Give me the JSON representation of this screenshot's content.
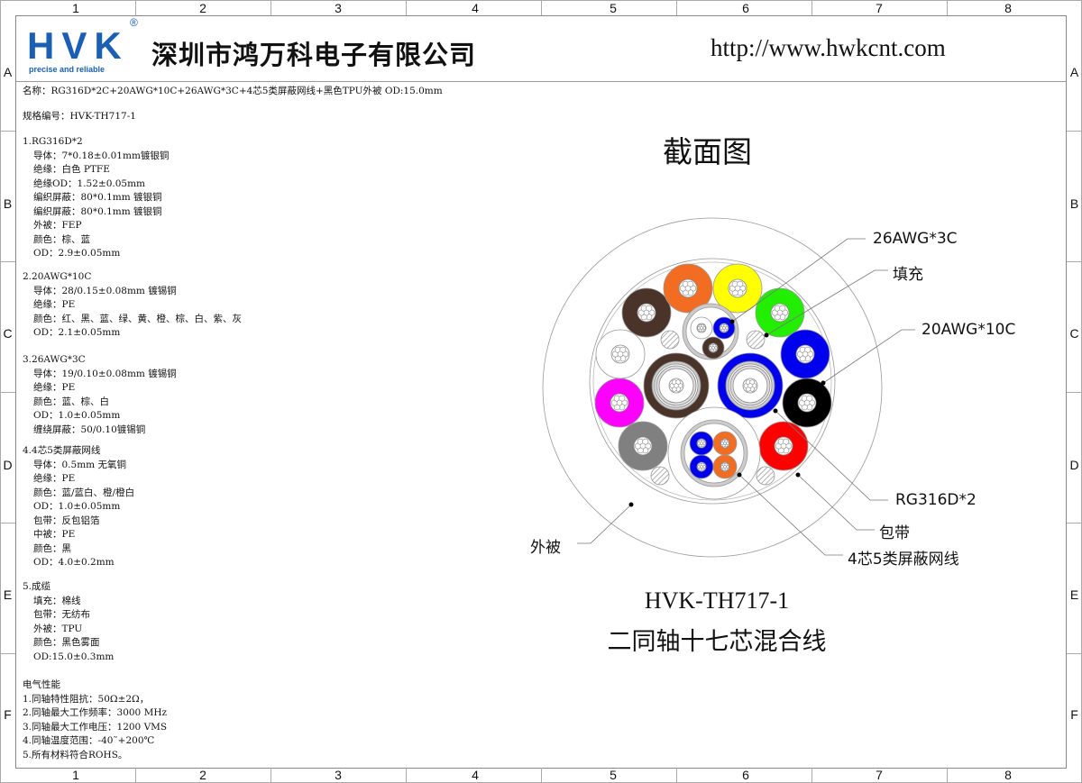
{
  "frame": {
    "columns": [
      "1",
      "2",
      "3",
      "4",
      "5",
      "6",
      "7",
      "8"
    ],
    "rows": [
      "A",
      "B",
      "C",
      "D",
      "E",
      "F"
    ]
  },
  "header": {
    "logo_text": "HVK",
    "logo_tagline": "precise and reliable",
    "logo_mark": "®",
    "company": "深圳市鸿万科电子有限公司",
    "url": "http://www.hwkcnt.com",
    "brand_color": "#1a5fb4"
  },
  "spec": {
    "name_line": "名称：RG316D*2C+20AWG*10C+26AWG*3C+4芯5类屏蔽网线+黑色TPU外被 OD:15.0mm",
    "code_line": "规格编号：HVK-TH717-1",
    "sections": [
      {
        "title": "1.RG316D*2",
        "lines": [
          "导体：7*0.18±0.01mm镀银铜",
          "绝缘：白色 PTFE",
          "绝缘OD：1.52±0.05mm",
          "编织屏蔽：80*0.1mm 镀银铜",
          "编织屏蔽：80*0.1mm 镀银铜",
          "外被：FEP",
          "颜色：棕、蓝",
          "OD：2.9±0.05mm"
        ]
      },
      {
        "title": "2.20AWG*10C",
        "lines": [
          "导体：28/0.15±0.08mm 镀锡铜",
          "绝缘：PE",
          "颜色：红、黑、蓝、绿、黄、橙、棕、白、紫、灰",
          "OD：2.1±0.05mm"
        ]
      },
      {
        "title": "3.26AWG*3C",
        "lines": [
          "导体：19/0.10±0.08mm 镀锡铜",
          "绝缘：PE",
          "颜色：蓝、棕、白",
          "OD：1.0±0.05mm",
          "缠绕屏蔽：50/0.10镀锡铜"
        ]
      },
      {
        "title": "4.4芯5类屏蔽网线",
        "lines": [
          "导体：0.5mm 无氧铜",
          "绝缘：PE",
          "颜色：蓝/蓝白、橙/橙白",
          "OD：1.0±0.05mm",
          "包带：反包铝箔",
          "中被：PE",
          "颜色：黑",
          "OD：4.0±0.2mm"
        ]
      },
      {
        "title": "5.成缆",
        "lines": [
          "填充：棉线",
          "包带：无纺布",
          "外被：TPU",
          "颜色：黑色雾面",
          "OD:15.0±0.3mm"
        ]
      }
    ],
    "electrical": {
      "title": "电气性能",
      "lines": [
        "1.同轴特性阻抗：50Ω±2Ω，",
        "2.同轴最大工作频率：3000 MHz",
        "3.同轴最大工作电压：1200 VMS",
        "4.同轴温度范围：-40˜+200℃",
        "5.所有材料符合ROHS。"
      ]
    }
  },
  "drawing": {
    "title": "截面图",
    "labels": {
      "awg26": "26AWG*3C",
      "filler": "填充",
      "awg20": "20AWG*10C",
      "rg316": "RG316D*2",
      "tape": "包带",
      "cat5": "4芯5类屏蔽网线",
      "jacket": "外被"
    },
    "model": "HVK-TH717-1",
    "description": "二同轴十七芯混合线",
    "awg20_colors": [
      "#4a3328",
      "#f26d21",
      "#ffff00",
      "#22ee00",
      "#0000ee",
      "#000000",
      "#ff0000",
      "#808080",
      "#ff00ff",
      "#ffffff"
    ],
    "rg316_colors": [
      "#4a3328",
      "#0000ee"
    ],
    "awg26_colors": [
      "#ffffff",
      "#0000ee",
      "#4a3328"
    ],
    "cat5_colors": [
      "#0000ee",
      "#f26d21",
      "#0000ee",
      "#f26d21"
    ]
  }
}
